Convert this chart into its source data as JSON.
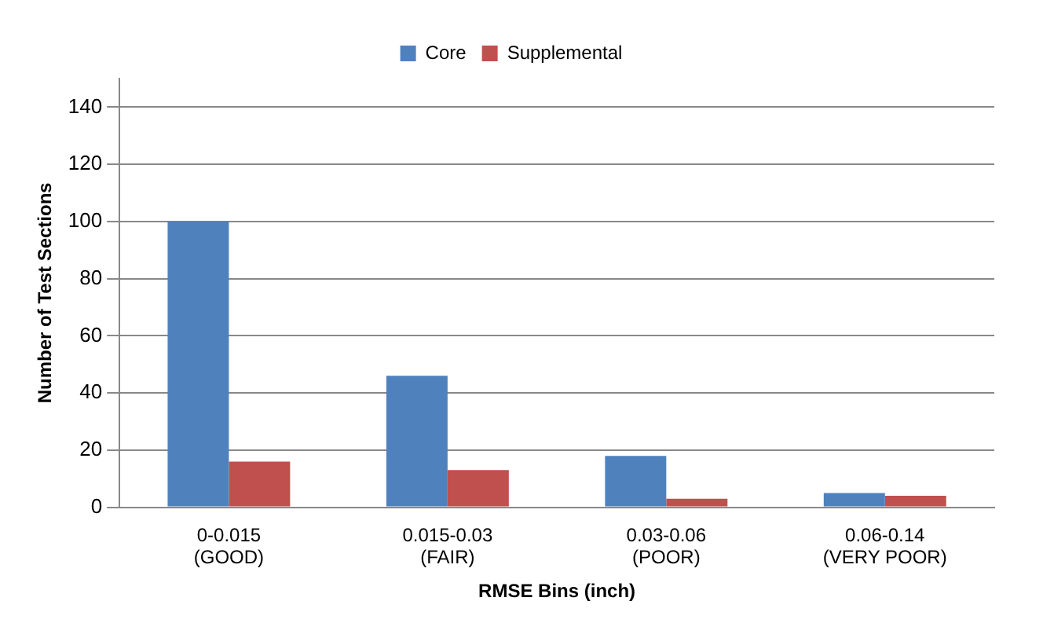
{
  "chart_data": {
    "type": "bar",
    "categories": [
      "0-0.015\n(GOOD)",
      "0.015-0.03\n(FAIR)",
      "0.03-0.06\n(POOR)",
      "0.06-0.14\n(VERY POOR)"
    ],
    "series": [
      {
        "name": "Core",
        "color": "#4f81bd",
        "values": [
          100,
          46,
          18,
          5
        ]
      },
      {
        "name": "Supplemental",
        "color": "#c0504d",
        "values": [
          16,
          13,
          3,
          4
        ]
      }
    ],
    "xlabel": "RMSE Bins (inch)",
    "ylabel": "Number of Test Sections",
    "ylim": [
      0,
      150
    ],
    "yticks": [
      0,
      20,
      40,
      60,
      80,
      100,
      120,
      140
    ],
    "grid": "y",
    "legend": "top"
  }
}
